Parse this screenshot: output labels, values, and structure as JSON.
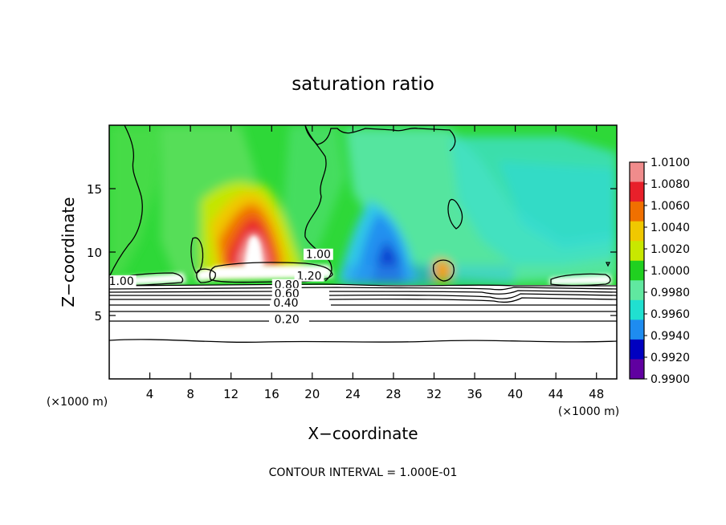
{
  "chart_data": {
    "type": "heatmap",
    "title": "saturation ratio",
    "xlabel": "X−coordinate",
    "ylabel": "Z−coordinate",
    "x_unit_label_left": "(×1000 m)",
    "x_unit_label_right": "(×1000 m)",
    "xlim": [
      0,
      50
    ],
    "ylim": [
      0,
      20
    ],
    "x_ticks": [
      4,
      8,
      12,
      16,
      20,
      24,
      28,
      32,
      36,
      40,
      44,
      48
    ],
    "x_tick_labels": [
      "4",
      "8",
      "12",
      "16",
      "20",
      "24",
      "28",
      "32",
      "36",
      "40",
      "44",
      "48"
    ],
    "y_ticks": [
      5,
      10,
      15
    ],
    "y_tick_labels": [
      "5",
      "10",
      "15"
    ],
    "colorbar": {
      "min": 0.99,
      "max": 1.01,
      "tick_labels": [
        "1.0100",
        "1.0080",
        "1.0060",
        "1.0040",
        "1.0020",
        "1.0000",
        "0.9980",
        "0.9960",
        "0.9940",
        "0.9920",
        "0.9900"
      ],
      "colors": [
        "#f08c8c",
        "#e8202a",
        "#f07000",
        "#f0c800",
        "#c8e800",
        "#20d020",
        "#60e8a0",
        "#20e0d0",
        "#1e8cf0",
        "#0000c0",
        "#6000a0"
      ]
    },
    "contour_labels": [
      {
        "text": "1.00",
        "x": 1.2,
        "z": 7.6
      },
      {
        "text": "1.00",
        "x": 20.6,
        "z": 9.7
      },
      {
        "text": "1.20",
        "x": 19.7,
        "z": 8.0
      },
      {
        "text": "0.80",
        "x": 17.5,
        "z": 7.3
      },
      {
        "text": "0.60",
        "x": 17.5,
        "z": 6.6
      },
      {
        "text": "0.40",
        "x": 17.4,
        "z": 5.9
      },
      {
        "text": "0.20",
        "x": 17.5,
        "z": 4.6
      }
    ],
    "footer": "CONTOUR INTERVAL = 1.000E-01"
  }
}
